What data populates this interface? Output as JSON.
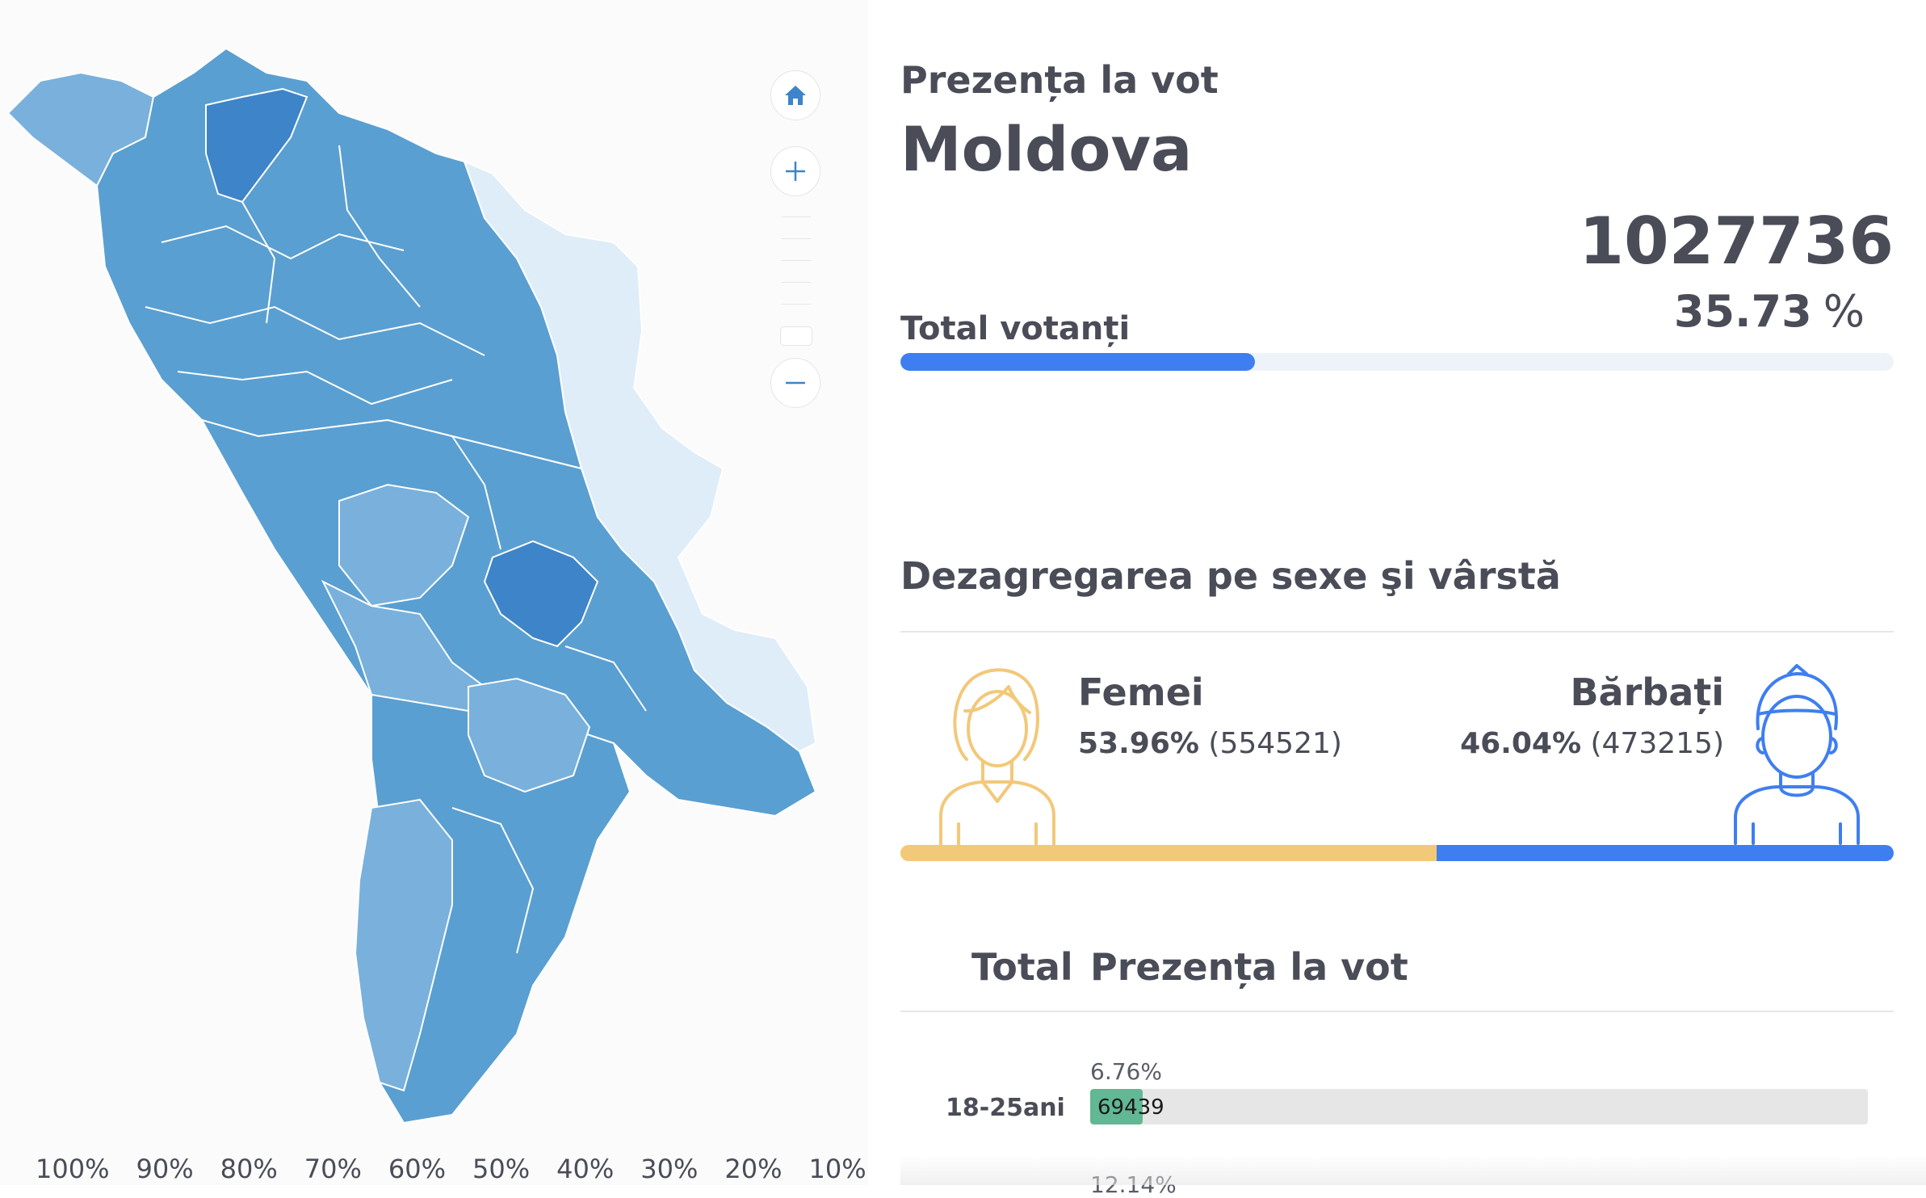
{
  "map": {
    "colors": {
      "high": "#3e84c8",
      "mid": "#5a9fd1",
      "low": "#79b1dc",
      "lowest": "#deedf8"
    },
    "controls": {
      "home_icon": "home-icon",
      "zoom_in_icon": "plus-icon",
      "zoom_out_icon": "minus-icon"
    },
    "legend": [
      "100%",
      "90%",
      "80%",
      "70%",
      "60%",
      "50%",
      "40%",
      "30%",
      "20%",
      "10%"
    ]
  },
  "header": {
    "eyebrow": "Prezența la vot",
    "country": "Moldova"
  },
  "total": {
    "count": "1027736",
    "percent": "35.73",
    "percent_sign": "%",
    "label": "Total votanți",
    "fraction": 0.3573,
    "bar_color": "#3f7ef0"
  },
  "gender": {
    "title": "Dezagregarea pe sexe şi vârstă",
    "female": {
      "label": "Femei",
      "percent": "53.96%",
      "count": "(554521)",
      "fraction": 0.5396,
      "color": "#f2c879"
    },
    "male": {
      "label": "Bărbați",
      "percent": "46.04%",
      "count": "(473215)",
      "fraction": 0.4604,
      "color": "#3f7ef0"
    }
  },
  "age_table": {
    "header_total": "Total",
    "header_turnout": "Prezența la vot",
    "rows": [
      {
        "label": "18-25ani",
        "percent": "6.76%",
        "count": "69439",
        "fraction": 0.0676
      }
    ],
    "next_row_percent": "12.14%"
  }
}
